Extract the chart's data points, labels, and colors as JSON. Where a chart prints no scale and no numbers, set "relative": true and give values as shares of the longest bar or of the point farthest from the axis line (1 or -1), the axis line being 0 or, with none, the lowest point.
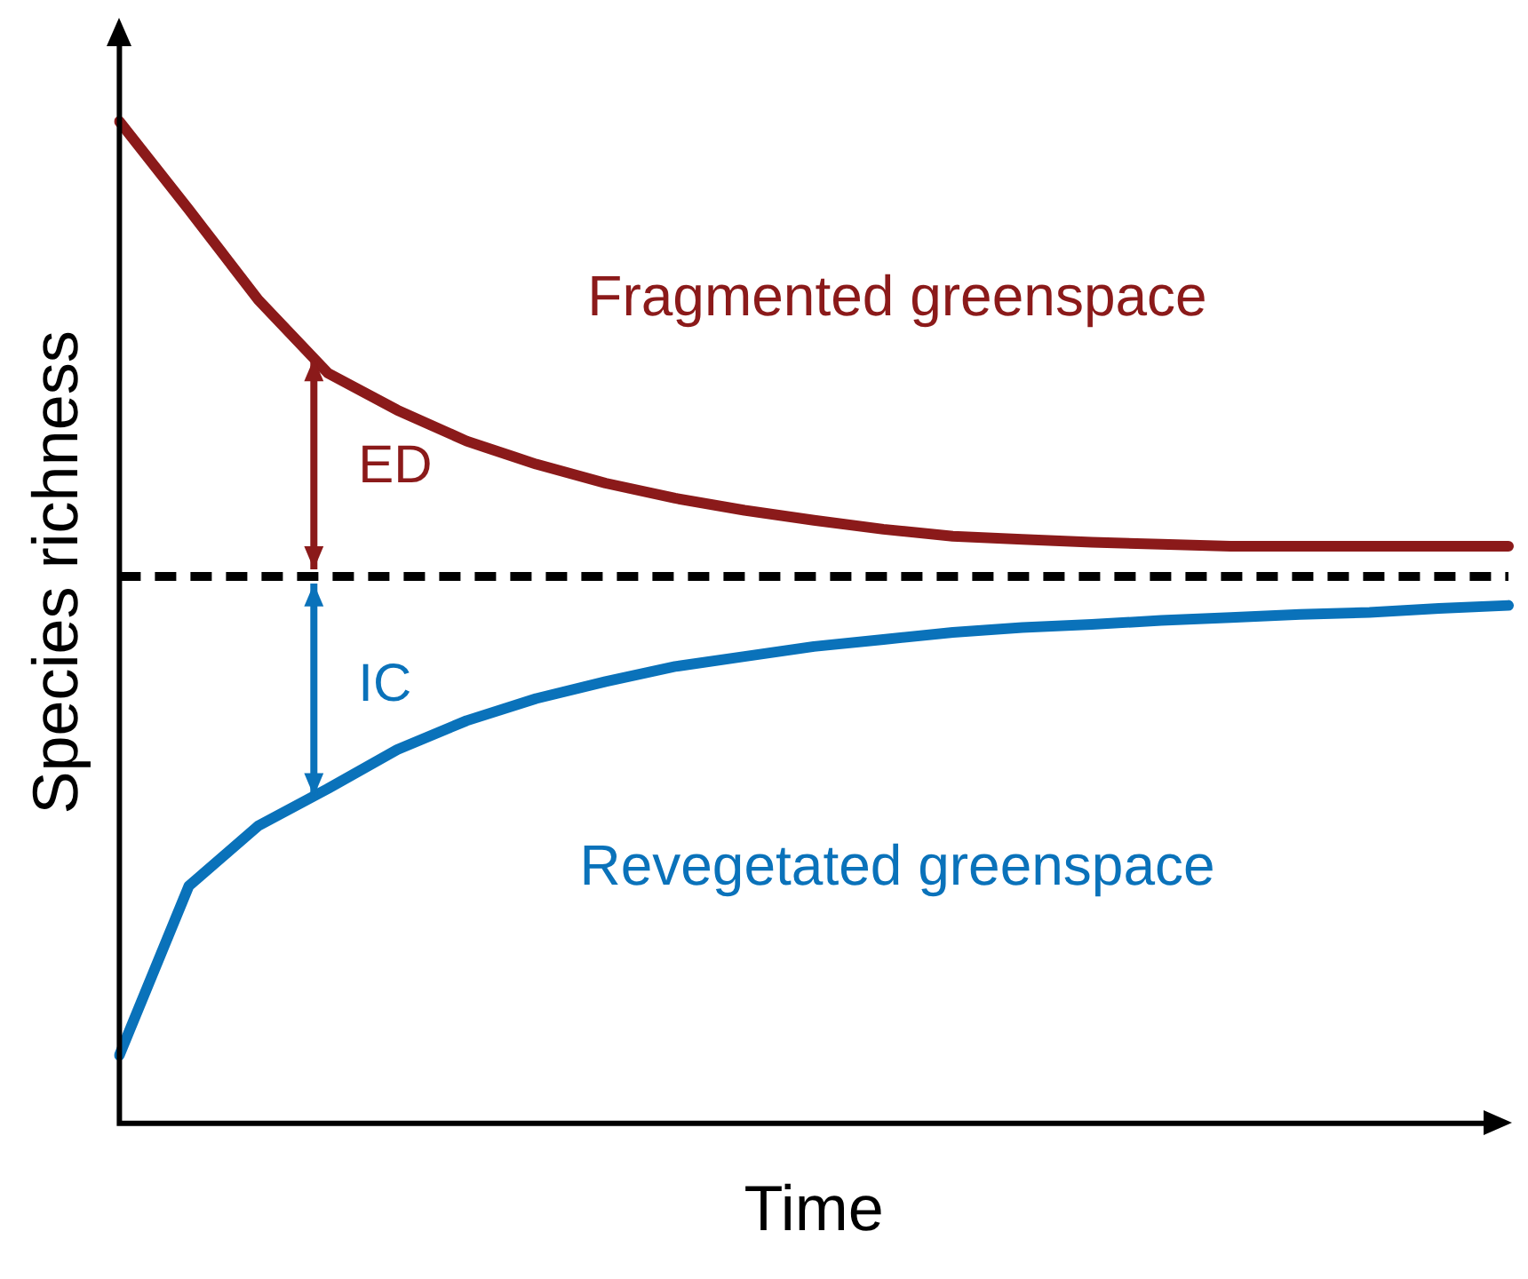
{
  "chart_data": {
    "type": "line",
    "relative": true,
    "xlabel": "Time",
    "ylabel": "Species richness",
    "legend": false,
    "grid": false,
    "marker": "none",
    "line_style": "solid",
    "categories": [
      null,
      null,
      null,
      null,
      null,
      null,
      null,
      null,
      null,
      null,
      null,
      null,
      null,
      null,
      null,
      null,
      null,
      null,
      null,
      null,
      null
    ],
    "series": [
      {
        "name": "Fragmented greenspace",
        "color": "#8b1a1a",
        "values": [
          1,
          0.912,
          0.822,
          0.749,
          0.712,
          0.681,
          0.658,
          0.639,
          0.624,
          0.612,
          0.602,
          0.593,
          0.586,
          0.583,
          0.58,
          0.578,
          0.576,
          0.576,
          0.576,
          0.576,
          0.576
        ]
      },
      {
        "name": "Revegetated greenspace",
        "color": "#0a72ba",
        "values": [
          0.068,
          0.237,
          0.297,
          0.334,
          0.373,
          0.402,
          0.424,
          0.441,
          0.456,
          0.466,
          0.476,
          0.483,
          0.49,
          0.495,
          0.498,
          0.502,
          0.505,
          0.508,
          0.51,
          0.514,
          0.517
        ]
      }
    ],
    "ref_lines": [
      {
        "axis": "y",
        "value": 0.546,
        "color": "#000000",
        "line_style": "dashed"
      }
    ],
    "annotations": [
      "ED",
      "IC"
    ]
  }
}
